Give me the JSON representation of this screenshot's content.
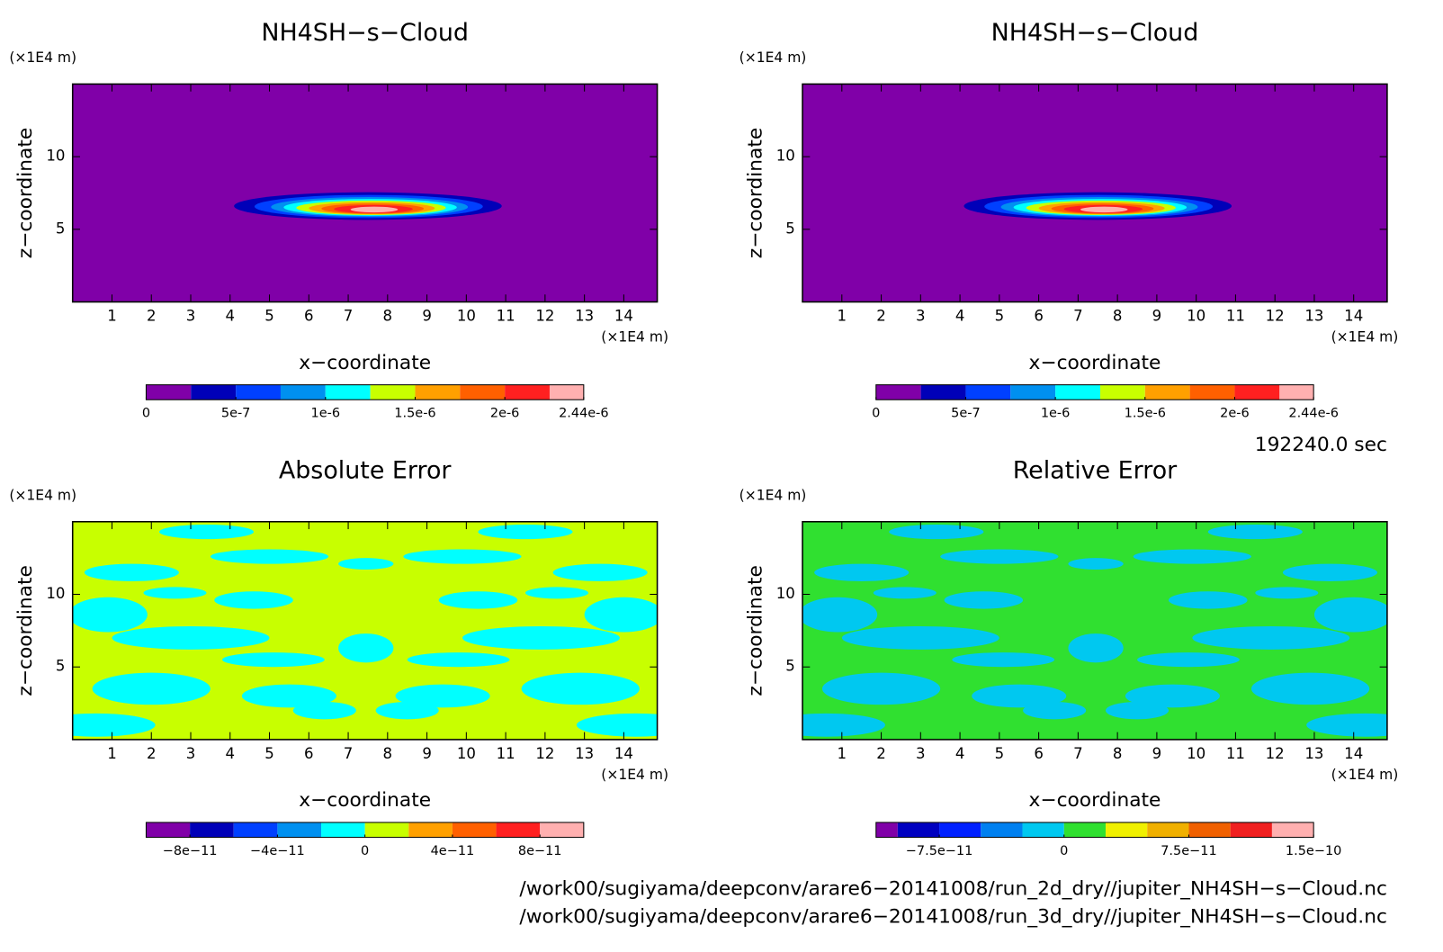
{
  "chart_data": [
    {
      "type": "contour",
      "title": "NH4SH−s−Cloud",
      "xlabel": "x−coordinate",
      "ylabel": "z−coordinate",
      "x_unit": "(×1E4 m)",
      "y_unit": "(×1E4 m)",
      "xlim": [
        0,
        14.85
      ],
      "ylim": [
        0,
        15
      ],
      "xticks": [
        1,
        2,
        3,
        4,
        5,
        6,
        7,
        8,
        9,
        10,
        11,
        12,
        13,
        14
      ],
      "yticks": [
        5,
        10
      ],
      "colorbar": {
        "levels": [
          0,
          2.5e-07,
          5e-07,
          7.5e-07,
          1e-06,
          1.25e-06,
          1.5e-06,
          1.75e-06,
          2e-06,
          2.25e-06,
          2.44e-06
        ],
        "colors": [
          "#8000a8",
          "#0000b8",
          "#0040ff",
          "#0090f0",
          "#00ffff",
          "#c8ff00",
          "#ffa000",
          "#ff6000",
          "#ff2020",
          "#ffb0b0"
        ],
        "lim": [
          0,
          2.44e-06
        ],
        "ticks": [
          {
            "value": 0,
            "label": "0"
          },
          {
            "value": 5e-07,
            "label": "5e-7"
          },
          {
            "value": 1e-06,
            "label": "1e-6"
          },
          {
            "value": 1.5e-06,
            "label": "1.5e-6"
          },
          {
            "value": 2e-06,
            "label": "2e-6"
          },
          {
            "value": 2.44e-06,
            "label": "2.44e-6"
          }
        ]
      }
    },
    {
      "type": "contour",
      "title": "NH4SH−s−Cloud",
      "xlabel": "x−coordinate",
      "ylabel": "z−coordinate",
      "x_unit": "(×1E4 m)",
      "y_unit": "(×1E4 m)",
      "xlim": [
        0,
        14.85
      ],
      "ylim": [
        0,
        15
      ],
      "xticks": [
        1,
        2,
        3,
        4,
        5,
        6,
        7,
        8,
        9,
        10,
        11,
        12,
        13,
        14
      ],
      "yticks": [
        5,
        10
      ],
      "colorbar": {
        "levels": [
          0,
          2.5e-07,
          5e-07,
          7.5e-07,
          1e-06,
          1.25e-06,
          1.5e-06,
          1.75e-06,
          2e-06,
          2.25e-06,
          2.44e-06
        ],
        "colors": [
          "#8000a8",
          "#0000b8",
          "#0040ff",
          "#0090f0",
          "#00ffff",
          "#c8ff00",
          "#ffa000",
          "#ff6000",
          "#ff2020",
          "#ffb0b0"
        ],
        "lim": [
          0,
          2.44e-06
        ],
        "ticks": [
          {
            "value": 0,
            "label": "0"
          },
          {
            "value": 5e-07,
            "label": "5e-7"
          },
          {
            "value": 1e-06,
            "label": "1e-6"
          },
          {
            "value": 1.5e-06,
            "label": "1.5e-6"
          },
          {
            "value": 2e-06,
            "label": "2e-6"
          },
          {
            "value": 2.44e-06,
            "label": "2.44e-6"
          }
        ]
      }
    },
    {
      "type": "error",
      "title": "Absolute Error",
      "xlabel": "x−coordinate",
      "ylabel": "z−coordinate",
      "x_unit": "(×1E4 m)",
      "y_unit": "(×1E4 m)",
      "xlim": [
        0,
        14.85
      ],
      "ylim": [
        0,
        15
      ],
      "xticks": [
        1,
        2,
        3,
        4,
        5,
        6,
        7,
        8,
        9,
        10,
        11,
        12,
        13,
        14
      ],
      "yticks": [
        5,
        10
      ],
      "colorbar": {
        "levels": [
          -1e-10,
          -8e-11,
          -6e-11,
          -4e-11,
          -2e-11,
          0,
          2e-11,
          4e-11,
          6e-11,
          8e-11,
          1e-10
        ],
        "colors": [
          "#8000a8",
          "#0000b8",
          "#0040ff",
          "#0090f0",
          "#00ffff",
          "#c8ff00",
          "#ffa000",
          "#ff6000",
          "#ff2020",
          "#ffb0b0"
        ],
        "lim": [
          -1e-10,
          1e-10
        ],
        "ticks": [
          {
            "value": -8e-11,
            "label": "−8e−11"
          },
          {
            "value": -4e-11,
            "label": "−4e−11"
          },
          {
            "value": 0,
            "label": "0"
          },
          {
            "value": 4e-11,
            "label": "4e−11"
          },
          {
            "value": 8e-11,
            "label": "8e−11"
          }
        ]
      }
    },
    {
      "type": "error",
      "title": "Relative Error",
      "xlabel": "x−coordinate",
      "ylabel": "z−coordinate",
      "x_unit": "(×1E4 m)",
      "y_unit": "(×1E4 m)",
      "xlim": [
        0,
        14.85
      ],
      "ylim": [
        0,
        15
      ],
      "xticks": [
        1,
        2,
        3,
        4,
        5,
        6,
        7,
        8,
        9,
        10,
        11,
        12,
        13,
        14
      ],
      "yticks": [
        5,
        10
      ],
      "colorbar": {
        "levels": [
          -1.13e-10,
          -1e-10,
          -7.5e-11,
          -5e-11,
          -2.5e-11,
          0,
          2.5e-11,
          5e-11,
          7.5e-11,
          1e-10,
          1.25e-10,
          1.5e-10
        ],
        "colors": [
          "#8000a8",
          "#0000c0",
          "#0020ff",
          "#0080f0",
          "#00c8f0",
          "#30e030",
          "#f0f000",
          "#f0b000",
          "#f06000",
          "#f02020",
          "#ffb0b0"
        ],
        "lim": [
          -1.13e-10,
          1.5e-10
        ],
        "ticks": [
          {
            "value": -7.5e-11,
            "label": "−7.5e−11"
          },
          {
            "value": 0,
            "label": "0"
          },
          {
            "value": 7.5e-11,
            "label": "7.5e−11"
          },
          {
            "value": 1.5e-10,
            "label": "1.5e−10"
          }
        ]
      }
    }
  ],
  "annotations": {
    "time": "192240.0 sec",
    "files": [
      "/work00/sugiyama/deepconv/arare6−20141008/run_2d_dry//jupiter_NH4SH−s−Cloud.nc",
      "/work00/sugiyama/deepconv/arare6−20141008/run_3d_dry//jupiter_NH4SH−s−Cloud.nc"
    ]
  }
}
